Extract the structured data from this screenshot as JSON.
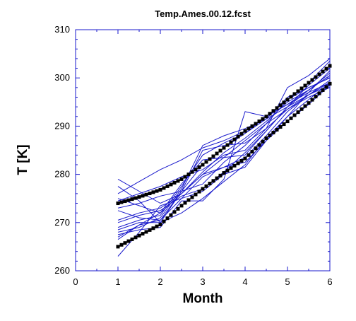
{
  "chart_data": {
    "type": "line",
    "title": "Temp.Ames.00.12.fcst",
    "xlabel": "Month",
    "ylabel": "T [K]",
    "xlim": [
      0,
      6
    ],
    "ylim": [
      260,
      310
    ],
    "xticks": [
      "0",
      "1",
      "2",
      "3",
      "4",
      "5",
      "6"
    ],
    "yticks": [
      "260",
      "270",
      "280",
      "290",
      "300",
      "310"
    ],
    "grid": false,
    "colors": {
      "ensemble": "#1a1acc",
      "bounds": "#000000",
      "axis": "#1a1acc"
    },
    "series": [
      {
        "values": [
          [
            1,
            279.0
          ],
          [
            1.5,
            276.5
          ],
          [
            2,
            274.0
          ],
          [
            2.5,
            276.0
          ],
          [
            3,
            280.5
          ],
          [
            3.5,
            284.5
          ],
          [
            4,
            287.5
          ],
          [
            4.5,
            291.0
          ],
          [
            5,
            295.0
          ],
          [
            5.5,
            297.5
          ],
          [
            6,
            300.5
          ]
        ]
      },
      {
        "values": [
          [
            1,
            277.5
          ],
          [
            1.5,
            274.5
          ],
          [
            2,
            270.0
          ],
          [
            2.5,
            276.5
          ],
          [
            3,
            282.0
          ],
          [
            3.5,
            285.5
          ],
          [
            4,
            288.5
          ],
          [
            4.5,
            291.5
          ],
          [
            5,
            296.0
          ],
          [
            5.5,
            298.0
          ],
          [
            6,
            300.0
          ]
        ]
      },
      {
        "values": [
          [
            1,
            276.0
          ],
          [
            1.5,
            278.5
          ],
          [
            2,
            281.0
          ],
          [
            2.5,
            283.0
          ],
          [
            3,
            285.5
          ],
          [
            3.5,
            287.0
          ],
          [
            4,
            289.0
          ],
          [
            4.5,
            292.0
          ],
          [
            5,
            294.5
          ],
          [
            5.5,
            297.0
          ],
          [
            6,
            299.0
          ]
        ]
      },
      {
        "values": [
          [
            1,
            275.0
          ],
          [
            1.5,
            273.5
          ],
          [
            2,
            272.0
          ],
          [
            2.5,
            278.0
          ],
          [
            3,
            283.0
          ],
          [
            3.5,
            283.5
          ],
          [
            4,
            284.0
          ],
          [
            4.5,
            289.0
          ],
          [
            5,
            294.0
          ],
          [
            5.5,
            297.5
          ],
          [
            6,
            301.0
          ]
        ]
      },
      {
        "values": [
          [
            1,
            274.5
          ],
          [
            1.5,
            276.0
          ],
          [
            2,
            277.5
          ],
          [
            2.5,
            279.5
          ],
          [
            3,
            281.0
          ],
          [
            3.5,
            284.0
          ],
          [
            4,
            285.0
          ],
          [
            4.5,
            289.5
          ],
          [
            5,
            293.5
          ],
          [
            5.5,
            296.5
          ],
          [
            6,
            298.5
          ]
        ]
      },
      {
        "values": [
          [
            1,
            273.0
          ],
          [
            1.5,
            274.0
          ],
          [
            2,
            275.5
          ],
          [
            2.5,
            276.5
          ],
          [
            3,
            278.0
          ],
          [
            3.5,
            282.5
          ],
          [
            4,
            286.0
          ],
          [
            4.5,
            290.5
          ],
          [
            5,
            295.5
          ],
          [
            5.5,
            298.0
          ],
          [
            6,
            300.0
          ]
        ]
      },
      {
        "values": [
          [
            1,
            272.5
          ],
          [
            1.5,
            271.0
          ],
          [
            2,
            270.5
          ],
          [
            2.5,
            275.0
          ],
          [
            3,
            279.5
          ],
          [
            3.5,
            281.5
          ],
          [
            4,
            283.5
          ],
          [
            4.5,
            288.0
          ],
          [
            5,
            293.0
          ],
          [
            5.5,
            296.5
          ],
          [
            6,
            299.5
          ]
        ]
      },
      {
        "values": [
          [
            1,
            270.5
          ],
          [
            1.5,
            272.0
          ],
          [
            2,
            273.0
          ],
          [
            2.5,
            276.0
          ],
          [
            3,
            280.0
          ],
          [
            3.5,
            283.5
          ],
          [
            4,
            287.0
          ],
          [
            4.5,
            290.5
          ],
          [
            5,
            293.5
          ],
          [
            5.5,
            296.0
          ],
          [
            6,
            298.0
          ]
        ]
      },
      {
        "values": [
          [
            1,
            270.0
          ],
          [
            1.5,
            271.5
          ],
          [
            2,
            272.5
          ],
          [
            2.5,
            275.5
          ],
          [
            3,
            277.0
          ],
          [
            3.5,
            280.5
          ],
          [
            4,
            284.5
          ],
          [
            4.5,
            289.0
          ],
          [
            5,
            294.0
          ],
          [
            5.5,
            298.5
          ],
          [
            6,
            302.0
          ]
        ]
      },
      {
        "values": [
          [
            1,
            269.0
          ],
          [
            1.5,
            270.5
          ],
          [
            2,
            271.5
          ],
          [
            2.5,
            277.5
          ],
          [
            3,
            284.0
          ],
          [
            3.5,
            286.5
          ],
          [
            4,
            288.5
          ],
          [
            4.5,
            292.0
          ],
          [
            5,
            295.5
          ],
          [
            5.5,
            299.0
          ],
          [
            6,
            303.5
          ]
        ]
      },
      {
        "values": [
          [
            1,
            268.5
          ],
          [
            1.5,
            270.0
          ],
          [
            2,
            270.0
          ],
          [
            2.5,
            272.0
          ],
          [
            3,
            275.0
          ],
          [
            3.5,
            278.5
          ],
          [
            4,
            282.0
          ],
          [
            4.5,
            287.5
          ],
          [
            5,
            292.0
          ],
          [
            5.5,
            295.5
          ],
          [
            6,
            299.0
          ]
        ]
      },
      {
        "values": [
          [
            1,
            268.0
          ],
          [
            1.5,
            269.0
          ],
          [
            2,
            271.0
          ],
          [
            2.5,
            277.0
          ],
          [
            3,
            286.0
          ],
          [
            3.5,
            288.0
          ],
          [
            4,
            289.5
          ],
          [
            4.5,
            291.5
          ],
          [
            5,
            294.0
          ],
          [
            5.5,
            296.5
          ],
          [
            6,
            299.0
          ]
        ]
      },
      {
        "values": [
          [
            1,
            267.5
          ],
          [
            1.5,
            268.5
          ],
          [
            2,
            269.0
          ],
          [
            2.5,
            274.5
          ],
          [
            3,
            274.5
          ],
          [
            3.5,
            279.0
          ],
          [
            4,
            293.0
          ],
          [
            4.5,
            292.0
          ],
          [
            5,
            294.5
          ],
          [
            5.5,
            297.5
          ],
          [
            6,
            300.5
          ]
        ]
      },
      {
        "values": [
          [
            1,
            266.5
          ],
          [
            1.5,
            269.5
          ],
          [
            2,
            272.0
          ],
          [
            2.5,
            276.0
          ],
          [
            3,
            280.0
          ],
          [
            3.5,
            281.5
          ],
          [
            4,
            282.5
          ],
          [
            4.5,
            287.0
          ],
          [
            5,
            292.0
          ],
          [
            5.5,
            297.0
          ],
          [
            6,
            301.5
          ]
        ]
      },
      {
        "values": [
          [
            1,
            263.0
          ],
          [
            1.5,
            268.0
          ],
          [
            2,
            273.5
          ],
          [
            2.5,
            275.0
          ],
          [
            3,
            276.5
          ],
          [
            3.5,
            280.0
          ],
          [
            4,
            281.5
          ],
          [
            4.5,
            287.0
          ],
          [
            5,
            291.0
          ],
          [
            5.5,
            294.5
          ],
          [
            6,
            298.5
          ]
        ]
      },
      {
        "values": [
          [
            1,
            267.0
          ],
          [
            1.5,
            269.5
          ],
          [
            2,
            270.5
          ],
          [
            2.5,
            276.5
          ],
          [
            3,
            285.0
          ],
          [
            3.5,
            286.0
          ],
          [
            4,
            286.5
          ],
          [
            4.5,
            289.5
          ],
          [
            5,
            298.0
          ],
          [
            5.5,
            300.5
          ],
          [
            6,
            304.0
          ]
        ]
      }
    ],
    "bounds": [
      {
        "values": [
          [
            1,
            274.0
          ],
          [
            1.5,
            275.3
          ],
          [
            2,
            276.8
          ],
          [
            2.5,
            279.0
          ],
          [
            3,
            282.0
          ],
          [
            3.5,
            285.5
          ],
          [
            4,
            289.0
          ],
          [
            4.5,
            292.0
          ],
          [
            5,
            295.5
          ],
          [
            5.5,
            299.0
          ],
          [
            6,
            302.5
          ]
        ]
      },
      {
        "values": [
          [
            1,
            265.0
          ],
          [
            1.5,
            267.3
          ],
          [
            2,
            269.6
          ],
          [
            2.5,
            273.5
          ],
          [
            3,
            277.0
          ],
          [
            3.5,
            280.3
          ],
          [
            4,
            283.3
          ],
          [
            4.5,
            287.5
          ],
          [
            5,
            291.0
          ],
          [
            5.5,
            294.8
          ],
          [
            6,
            298.8
          ]
        ]
      }
    ]
  }
}
